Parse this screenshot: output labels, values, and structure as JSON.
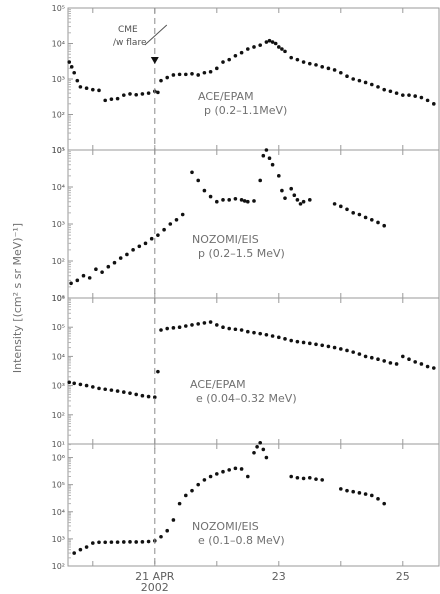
{
  "chart_data": {
    "type": "scatter",
    "ylabel": "Intensity [(cm² s sr MeV)⁻¹]",
    "y_scale": "log",
    "x_unit": "days (April 2002)",
    "xlim": [
      19.6,
      25.6
    ],
    "x_ticks": [
      {
        "value": 21,
        "label": "21 APR"
      },
      {
        "value": 23,
        "label": "23"
      },
      {
        "value": 25,
        "label": "25"
      }
    ],
    "x_year_label": "2002",
    "event_marker": {
      "x": 21.0,
      "label_line1": "CME",
      "label_line2": "/w flare"
    },
    "panels": [
      {
        "label_line1": "ACE/EPAM",
        "label_line2": "p (0.2–1.1MeV)",
        "ylim_exp": [
          1,
          5
        ],
        "y_tick_labels": [
          "10¹",
          "10²",
          "10³",
          "10⁴",
          "10⁵"
        ],
        "series": [
          {
            "x": [
              19.62,
              19.66,
              19.7,
              19.75,
              19.8,
              19.9,
              20.0,
              20.1,
              20.2,
              20.3,
              20.4,
              20.5,
              20.6,
              20.7,
              20.8,
              20.9,
              21.0,
              21.05,
              21.1,
              21.2,
              21.3,
              21.4,
              21.5,
              21.6,
              21.7,
              21.8,
              21.9,
              22.0,
              22.1,
              22.2,
              22.3,
              22.4,
              22.5,
              22.6,
              22.7,
              22.8,
              22.85,
              22.9,
              22.95,
              23.0,
              23.05,
              23.1,
              23.2,
              23.3,
              23.4,
              23.5,
              23.6,
              23.7,
              23.8,
              23.9,
              24.0,
              24.1,
              24.2,
              24.3,
              24.4,
              24.5,
              24.6,
              24.7,
              24.8,
              24.9,
              25.0,
              25.1,
              25.2,
              25.3,
              25.4,
              25.5
            ],
            "y": [
              3000,
              2200,
              1500,
              900,
              600,
              550,
              500,
              480,
              250,
              270,
              280,
              350,
              380,
              360,
              380,
              400,
              450,
              420,
              900,
              1100,
              1300,
              1350,
              1350,
              1400,
              1300,
              1500,
              1600,
              2000,
              3000,
              3500,
              4500,
              5500,
              7000,
              8000,
              9000,
              11000,
              12000,
              11000,
              10000,
              8000,
              7000,
              6000,
              4000,
              3500,
              3000,
              2700,
              2500,
              2200,
              2000,
              1800,
              1500,
              1200,
              1000,
              900,
              800,
              700,
              600,
              500,
              450,
              400,
              350,
              350,
              330,
              300,
              250,
              200
            ]
          }
        ]
      },
      {
        "label_line1": "NOZOMI/EIS",
        "label_line2": "p (0.2–1.5 MeV)",
        "ylim_exp": [
          1,
          5
        ],
        "y_tick_labels": [
          "10¹",
          "10²",
          "10³",
          "10⁴",
          "10⁵"
        ],
        "series": [
          {
            "x": [
              19.65,
              19.75,
              19.85,
              19.95,
              20.05,
              20.15,
              20.25,
              20.35,
              20.45,
              20.55,
              20.65,
              20.75,
              20.85,
              20.95,
              21.05,
              21.15,
              21.25,
              21.35,
              21.45,
              21.6,
              21.7,
              21.8,
              21.9,
              22.0,
              22.1,
              22.2,
              22.3,
              22.4,
              22.45,
              22.5,
              22.6,
              23.2,
              23.25,
              23.3,
              23.35,
              23.4,
              23.5,
              23.9,
              24.0,
              24.1,
              24.2,
              24.3,
              24.4,
              24.5,
              24.6,
              24.7
            ],
            "y": [
              25,
              30,
              40,
              35,
              60,
              50,
              70,
              90,
              120,
              150,
              200,
              250,
              300,
              400,
              500,
              700,
              1000,
              1300,
              1800,
              25000,
              15000,
              8000,
              5500,
              4000,
              4500,
              4500,
              4800,
              4500,
              4200,
              4000,
              4200,
              9000,
              6000,
              4500,
              3500,
              4000,
              4500,
              3500,
              3000,
              2500,
              2000,
              1800,
              1500,
              1300,
              1100,
              900
            ]
          },
          {
            "x": [
              22.7,
              22.75,
              22.8,
              22.85,
              22.9,
              23.0,
              23.05,
              23.1
            ],
            "y": [
              15000,
              70000,
              100000,
              60000,
              40000,
              20000,
              8000,
              5000
            ]
          }
        ]
      },
      {
        "label_line1": "ACE/EPAM",
        "label_line2": "e (0.04–0.32 MeV)",
        "ylim_exp": [
          1,
          6
        ],
        "y_tick_labels": [
          "10¹",
          "10²",
          "10³",
          "10⁴",
          "10⁵",
          "10⁶"
        ],
        "series": [
          {
            "x": [
              19.62,
              19.7,
              19.8,
              19.9,
              20.0,
              20.1,
              20.2,
              20.3,
              20.4,
              20.5,
              20.6,
              20.7,
              20.8,
              20.9,
              21.0,
              21.05,
              21.1,
              21.2,
              21.3,
              21.4,
              21.5,
              21.6,
              21.7,
              21.8,
              21.9,
              22.0,
              22.1,
              22.2,
              22.3,
              22.4,
              22.5,
              22.6,
              22.7,
              22.8,
              22.9,
              23.0,
              23.1,
              23.2,
              23.3,
              23.4,
              23.5,
              23.6,
              23.7,
              23.8,
              23.9,
              24.0,
              24.1,
              24.2,
              24.3,
              24.4,
              24.5,
              24.6,
              24.7,
              24.8,
              24.9,
              25.0,
              25.1,
              25.2,
              25.3,
              25.4,
              25.5
            ],
            "y": [
              1300,
              1200,
              1100,
              1000,
              900,
              800,
              750,
              700,
              650,
              600,
              550,
              500,
              450,
              420,
              400,
              3000,
              80000,
              90000,
              95000,
              100000,
              110000,
              120000,
              130000,
              140000,
              150000,
              120000,
              100000,
              90000,
              85000,
              80000,
              70000,
              65000,
              60000,
              55000,
              50000,
              45000,
              40000,
              35000,
              32000,
              30000,
              28000,
              26000,
              24000,
              22000,
              20000,
              18000,
              16000,
              14000,
              12000,
              10000,
              9000,
              8000,
              7000,
              6000,
              5500,
              10000,
              8000,
              6500,
              5500,
              4500,
              4000
            ]
          }
        ]
      },
      {
        "label_line1": "NOZOMI/EIS",
        "label_line2": "e (0.1–0.8 MeV)",
        "ylim_exp": [
          2,
          6.5
        ],
        "y_tick_labels": [
          "10²",
          "10³",
          "10⁴",
          "10⁵",
          "10⁶"
        ],
        "series": [
          {
            "x": [
              19.7,
              19.8,
              19.9,
              20.0,
              20.1,
              20.2,
              20.3,
              20.4,
              20.5,
              20.6,
              20.7,
              20.8,
              20.9,
              21.0,
              21.1,
              21.2,
              21.3,
              21.4,
              21.5,
              21.6,
              21.7,
              21.8,
              21.9,
              22.0,
              22.1,
              22.2,
              22.3,
              22.4,
              22.5,
              22.6,
              22.65,
              22.7,
              22.75,
              22.8,
              23.2,
              23.3,
              23.4,
              23.5,
              23.6,
              23.7,
              24.0,
              24.1,
              24.2,
              24.3,
              24.4,
              24.5,
              24.6,
              24.7
            ],
            "y": [
              300,
              400,
              500,
              700,
              750,
              750,
              760,
              760,
              770,
              780,
              770,
              780,
              800,
              850,
              1200,
              2000,
              5000,
              20000,
              40000,
              60000,
              100000,
              150000,
              200000,
              250000,
              300000,
              350000,
              400000,
              380000,
              200000,
              1500000,
              2500000,
              3500000,
              2000000,
              1000000,
              200000,
              180000,
              170000,
              180000,
              160000,
              150000,
              70000,
              60000,
              55000,
              50000,
              45000,
              40000,
              30000,
              20000
            ]
          }
        ]
      }
    ]
  }
}
